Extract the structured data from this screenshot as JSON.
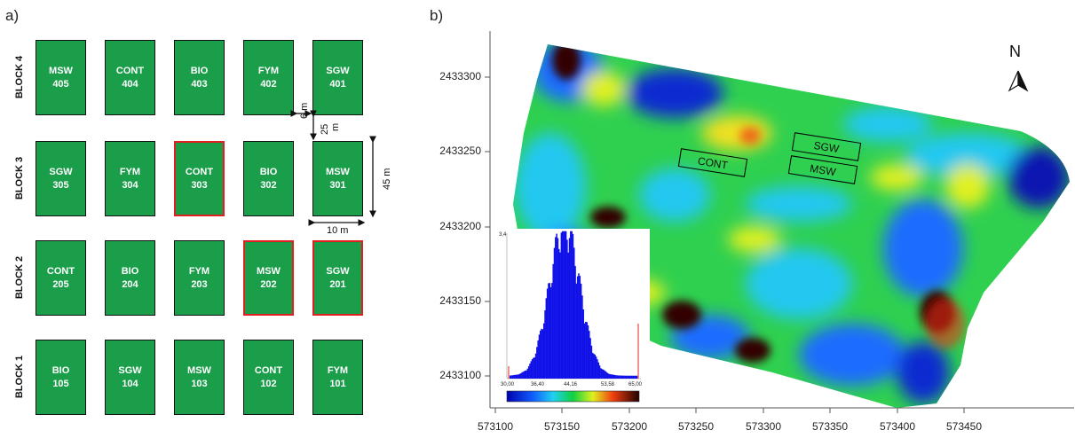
{
  "panel_a": {
    "label": "a)",
    "blocks": [
      {
        "name": "BLOCK 4",
        "plots": [
          {
            "trt": "MSW",
            "id": "405",
            "highlight": false
          },
          {
            "trt": "CONT",
            "id": "404",
            "highlight": false
          },
          {
            "trt": "BIO",
            "id": "403",
            "highlight": false
          },
          {
            "trt": "FYM",
            "id": "402",
            "highlight": false
          },
          {
            "trt": "SGW",
            "id": "401",
            "highlight": false
          }
        ]
      },
      {
        "name": "BLOCK 3",
        "plots": [
          {
            "trt": "SGW",
            "id": "305",
            "highlight": false
          },
          {
            "trt": "FYM",
            "id": "304",
            "highlight": false
          },
          {
            "trt": "CONT",
            "id": "303",
            "highlight": true
          },
          {
            "trt": "BIO",
            "id": "302",
            "highlight": false
          },
          {
            "trt": "MSW",
            "id": "301",
            "highlight": false
          }
        ]
      },
      {
        "name": "BLOCK 2",
        "plots": [
          {
            "trt": "CONT",
            "id": "205",
            "highlight": false
          },
          {
            "trt": "BIO",
            "id": "204",
            "highlight": false
          },
          {
            "trt": "FYM",
            "id": "203",
            "highlight": false
          },
          {
            "trt": "MSW",
            "id": "202",
            "highlight": true
          },
          {
            "trt": "SGW",
            "id": "201",
            "highlight": true
          }
        ]
      },
      {
        "name": "BLOCK 1",
        "plots": [
          {
            "trt": "BIO",
            "id": "105",
            "highlight": false
          },
          {
            "trt": "SGW",
            "id": "104",
            "highlight": false
          },
          {
            "trt": "MSW",
            "id": "103",
            "highlight": false
          },
          {
            "trt": "CONT",
            "id": "102",
            "highlight": false
          },
          {
            "trt": "FYM",
            "id": "101",
            "highlight": false
          }
        ]
      }
    ],
    "dimensions": {
      "gap_h": "6 m",
      "gap_v_num": "25",
      "gap_v_unit": "m",
      "height": "45 m",
      "width": "10 m"
    },
    "colors": {
      "plot_fill": "#1a9e4a",
      "highlight_border": "#e02020"
    }
  },
  "panel_b": {
    "label": "b)",
    "north": "N",
    "y_ticks": [
      "2433300",
      "2433250",
      "2433200",
      "2433150",
      "2433100"
    ],
    "x_ticks": [
      "573100",
      "573150",
      "573200",
      "573250",
      "573300",
      "573350",
      "573400",
      "573450"
    ],
    "plot_labels": [
      "CONT",
      "SGW",
      "MSW"
    ],
    "histogram": {
      "y_max_label": "3,4",
      "x_labels": [
        "30,00",
        "36,40",
        "44,16",
        "53,58",
        "65,00"
      ]
    }
  }
}
